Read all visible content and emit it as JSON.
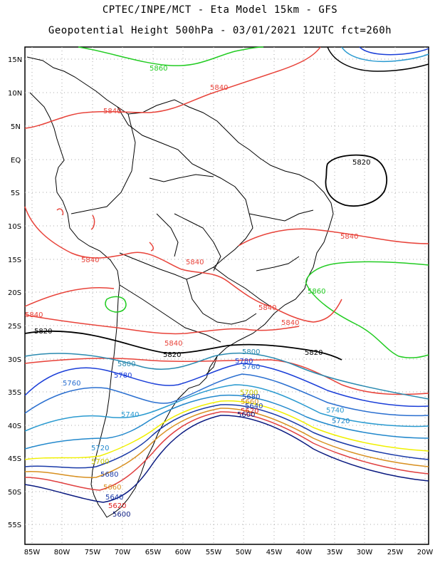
{
  "title_line1": "CPTEC/INPE/MCT -  Eta Model 15km - GFS",
  "title_line2": "Geopotential Height 500hPa - 03/01/2021 12UTC fct=260h",
  "lat_labels": [
    "15N",
    "10N",
    "5N",
    "EQ",
    "5S",
    "10S",
    "15S",
    "20S",
    "25S",
    "30S",
    "35S",
    "40S",
    "45S",
    "50S",
    "55S"
  ],
  "lon_labels": [
    "85W",
    "80W",
    "75W",
    "70W",
    "65W",
    "60W",
    "55W",
    "50W",
    "45W",
    "40W",
    "35W",
    "30W",
    "25W",
    "20W"
  ],
  "contour_labels": {
    "c5860": "5860",
    "c5840": "5840",
    "c5820": "5820",
    "c5800": "5800",
    "c5780": "5780",
    "c5760": "5760",
    "c5740": "5740",
    "c5720": "5720",
    "c5700": "5700",
    "c5680": "5680",
    "c5660": "5660",
    "c5640": "5640",
    "c5620": "5620",
    "c5600": "5600"
  },
  "contour_colors": {
    "5860": "#22cc22",
    "5840": "#e8433a",
    "5820": "#000000",
    "5800": "#2a8ab0",
    "5780": "#1a3ed8",
    "5760": "#2a6fd0",
    "5740": "#2a9ad0",
    "5720": "#2288cc",
    "5700": "#f0f000",
    "5680": "#1a3aa8",
    "5660": "#d89020",
    "5640": "#e04040",
    "5620": "#e02020",
    "5600": "#0a1a80"
  }
}
